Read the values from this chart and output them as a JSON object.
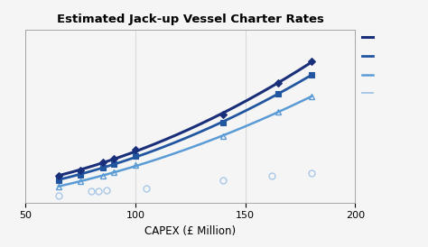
{
  "title": "Estimated Jack-up Vessel Charter Rates",
  "xlabel": "CAPEX (£ Million)",
  "xlim": [
    50,
    200
  ],
  "ylim": [
    0,
    6.5
  ],
  "series1_x": [
    65,
    75,
    85,
    90,
    100,
    140,
    165,
    180
  ],
  "series1_y": [
    1.0,
    1.2,
    1.5,
    1.65,
    2.0,
    3.3,
    4.5,
    5.3
  ],
  "series1_color": "#1a2f7a",
  "series1_marker": "D",
  "series2_x": [
    65,
    75,
    85,
    90,
    100,
    140,
    165,
    180
  ],
  "series2_y": [
    0.85,
    1.05,
    1.3,
    1.45,
    1.75,
    3.0,
    4.1,
    4.8
  ],
  "series2_color": "#2255a0",
  "series2_marker": "s",
  "series3_x": [
    65,
    75,
    85,
    90,
    100,
    140,
    165,
    180
  ],
  "series3_y": [
    0.6,
    0.8,
    1.0,
    1.15,
    1.4,
    2.5,
    3.4,
    4.0
  ],
  "series3_color": "#5b9bd5",
  "series3_marker": "^",
  "series4_x": [
    65,
    80,
    83,
    87,
    105,
    140,
    162,
    180
  ],
  "series4_y": [
    0.25,
    0.42,
    0.44,
    0.46,
    0.52,
    0.82,
    1.0,
    1.1
  ],
  "series4_color": "#a8c8e8",
  "series4_marker": "o",
  "line1_color": "#1a2f7a",
  "line2_color": "#2255a0",
  "line3_color": "#5b9bd5",
  "line4_color": "#a8c8e8",
  "bg_color": "#f5f5f5",
  "grid_color": "#cccccc",
  "legend_line_colors": [
    "#1a2f7a",
    "#2255a0",
    "#5b9bd5",
    "#a8c8e8"
  ]
}
